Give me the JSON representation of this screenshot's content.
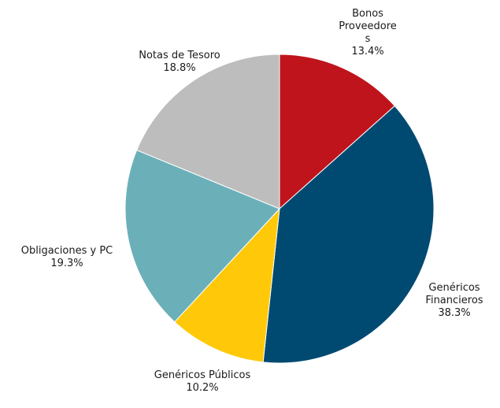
{
  "chart_data": {
    "type": "pie",
    "title": "",
    "start_angle_deg": 0,
    "direction": "clockwise",
    "slices": [
      {
        "label_lines": [
          "Bonos",
          "Proveedore",
          "s"
        ],
        "value": 13.4,
        "value_label": "13.4%",
        "color": "#C0141D"
      },
      {
        "label_lines": [
          "Genéricos",
          "Financieros"
        ],
        "value": 38.3,
        "value_label": "38.3%",
        "color": "#004A72"
      },
      {
        "label_lines": [
          "Genéricos Públicos"
        ],
        "value": 10.2,
        "value_label": "10.2%",
        "color": "#FFC90A"
      },
      {
        "label_lines": [
          "Obligaciones y PC"
        ],
        "value": 19.3,
        "value_label": "19.3%",
        "color": "#6BB0B9"
      },
      {
        "label_lines": [
          "Notas de Tesoro"
        ],
        "value": 18.8,
        "value_label": "18.8%",
        "color": "#BDBDBD"
      }
    ]
  }
}
